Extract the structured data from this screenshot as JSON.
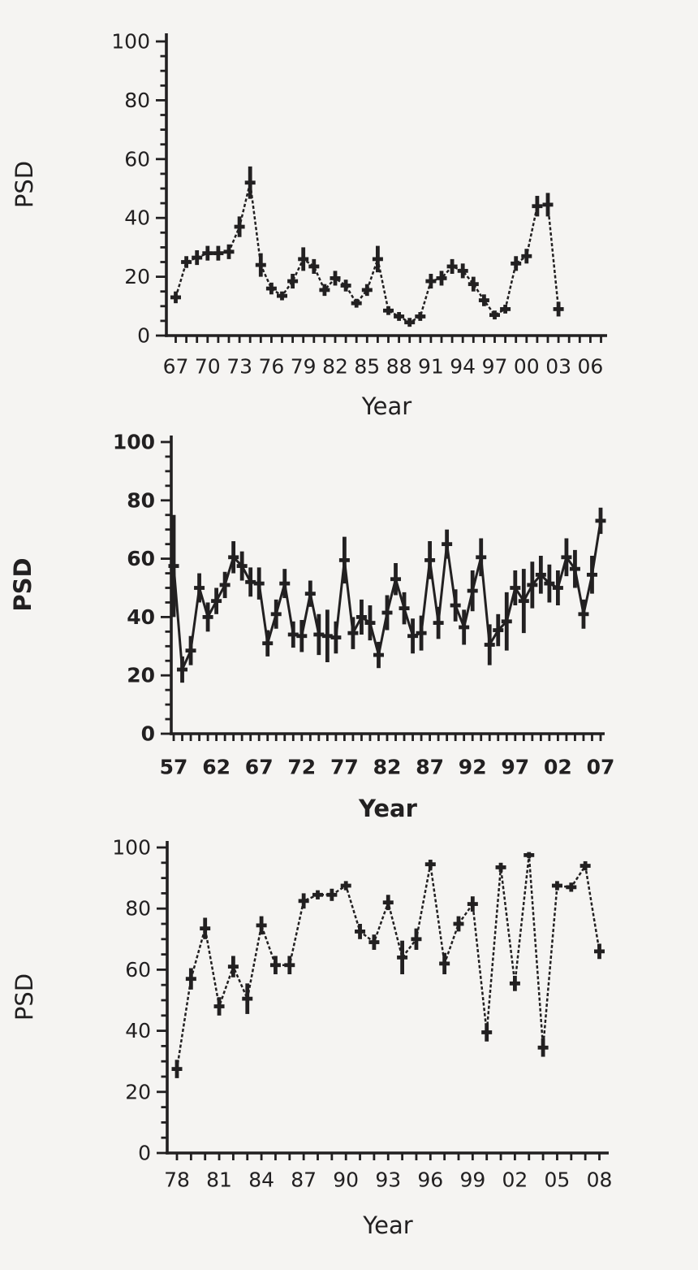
{
  "colors": {
    "background": "#f5f4f2",
    "ink": "#222021"
  },
  "chart_data": [
    {
      "id": "chart-top",
      "type": "line",
      "title": "",
      "ylabel": "PSD",
      "xlabel": "Year",
      "bold_axis_titles": false,
      "bold_tick_labels": false,
      "line_style": "dashed",
      "legend": "none",
      "grid": false,
      "ylim": [
        0,
        100
      ],
      "ytick_labels": [
        "0",
        "20",
        "40",
        "60",
        "80",
        "100"
      ],
      "ytick_minor_step": 5,
      "x_label_interval": 3,
      "x_tick_labels": [
        "67",
        "70",
        "73",
        "76",
        "79",
        "82",
        "85",
        "88",
        "91",
        "94",
        "97",
        "00",
        "03",
        "06"
      ],
      "x_axis_tick_years": 41,
      "series": [
        {
          "name": "PSD",
          "marker": "plus-dash",
          "years": [
            1967,
            1968,
            1969,
            1970,
            1971,
            1972,
            1973,
            1974,
            1975,
            1976,
            1977,
            1978,
            1979,
            1980,
            1981,
            1982,
            1983,
            1984,
            1985,
            1986,
            1987,
            1988,
            1989,
            1990,
            1991,
            1992,
            1993,
            1994,
            1995,
            1996,
            1997,
            1998,
            1999,
            2000,
            2001,
            2002,
            2003
          ],
          "values": [
            13,
            25,
            26.5,
            28,
            28,
            28.5,
            37,
            52,
            24,
            16,
            13.5,
            18.5,
            26,
            23.5,
            15.5,
            19.5,
            17,
            11,
            15.5,
            26,
            8.5,
            6.5,
            4.5,
            6.5,
            18.5,
            19.5,
            23.5,
            22,
            17.5,
            12,
            7,
            9,
            24.5,
            27,
            44,
            44.5,
            9
          ],
          "errors": [
            2,
            2,
            2.5,
            2.5,
            2.5,
            2.5,
            3.5,
            5.5,
            4,
            2,
            1.5,
            2.5,
            4,
            2.5,
            2,
            2.5,
            2,
            1.5,
            2,
            4.5,
            1.5,
            1.5,
            1.5,
            1.5,
            2.5,
            2.5,
            2.5,
            2.5,
            2.5,
            2,
            1.5,
            1.5,
            2.5,
            2.5,
            3.5,
            4,
            2.5
          ]
        }
      ]
    },
    {
      "id": "chart-middle",
      "type": "line",
      "title": "",
      "ylabel": "PSD",
      "xlabel": "Year",
      "bold_axis_titles": true,
      "bold_tick_labels": true,
      "line_style": "solid",
      "legend": "none",
      "grid": false,
      "ylim": [
        0,
        100
      ],
      "ytick_labels": [
        "0",
        "20",
        "40",
        "60",
        "80",
        "100"
      ],
      "ytick_minor_step": 5,
      "x_label_interval": 5,
      "x_tick_labels": [
        "57",
        "62",
        "67",
        "72",
        "77",
        "82",
        "87",
        "92",
        "97",
        "02",
        "07"
      ],
      "x_axis_tick_years": 51,
      "series": [
        {
          "name": "PSD",
          "marker": "plus-dash",
          "years": [
            1957,
            1958,
            1959,
            1960,
            1961,
            1962,
            1963,
            1964,
            1965,
            1966,
            1967,
            1968,
            1969,
            1970,
            1971,
            1972,
            1973,
            1974,
            1975,
            1976,
            1977,
            1978,
            1979,
            1980,
            1981,
            1982,
            1983,
            1984,
            1985,
            1986,
            1987,
            1988,
            1989,
            1990,
            1991,
            1992,
            1993,
            1994,
            1995,
            1996,
            1997,
            1998,
            1999,
            2000,
            2001,
            2002,
            2003,
            2004,
            2005,
            2006,
            2007
          ],
          "values": [
            57.5,
            22,
            28.5,
            50,
            40,
            45.5,
            51,
            60.5,
            57.5,
            52,
            51.5,
            31,
            41,
            51.5,
            34,
            33.5,
            48,
            34,
            33.5,
            33,
            59.5,
            34.5,
            40,
            38,
            27,
            41.5,
            53,
            43,
            33.5,
            34.5,
            59.5,
            38,
            65,
            44,
            36.5,
            49,
            60.5,
            30.5,
            35.5,
            38.5,
            50,
            45.5,
            51,
            54.5,
            51.5,
            50,
            60.5,
            56.5,
            41,
            54.5,
            73
          ],
          "errors": [
            17.5,
            4.5,
            5,
            5,
            5,
            4.5,
            4.5,
            5.5,
            5,
            5,
            5.5,
            4.5,
            5,
            5,
            4.5,
            5.5,
            4.5,
            7,
            9,
            5.5,
            8,
            5.5,
            6,
            6,
            4.5,
            6,
            5.5,
            5.5,
            6,
            6,
            6.5,
            5.5,
            5,
            5.5,
            6,
            7,
            6.5,
            7,
            5.5,
            10,
            6,
            11,
            8,
            6.5,
            6.5,
            6,
            6.5,
            6.5,
            5,
            6.5,
            4.5
          ]
        }
      ]
    },
    {
      "id": "chart-bottom",
      "type": "line",
      "title": "",
      "ylabel": "PSD",
      "xlabel": "Year",
      "bold_axis_titles": false,
      "bold_tick_labels": false,
      "line_style": "dashed",
      "legend": "none",
      "grid": false,
      "ylim": [
        0,
        100
      ],
      "ytick_labels": [
        "0",
        "20",
        "40",
        "60",
        "80",
        "100"
      ],
      "ytick_minor_step": 5,
      "x_label_interval": 3,
      "x_tick_labels": [
        "78",
        "81",
        "84",
        "87",
        "90",
        "93",
        "96",
        "99",
        "02",
        "05",
        "08"
      ],
      "x_axis_tick_years": 31,
      "series": [
        {
          "name": "PSD",
          "marker": "plus-dash",
          "years": [
            1978,
            1979,
            1980,
            1981,
            1982,
            1983,
            1984,
            1985,
            1986,
            1987,
            1988,
            1989,
            1990,
            1991,
            1992,
            1993,
            1994,
            1995,
            1996,
            1997,
            1998,
            1999,
            2000,
            2001,
            2002,
            2003,
            2004,
            2005,
            2006,
            2007,
            2008
          ],
          "values": [
            27.5,
            57,
            73.5,
            48,
            61,
            50.5,
            74.5,
            61.5,
            61.5,
            82.5,
            84.5,
            84.5,
            87.5,
            72.5,
            69,
            82,
            64,
            70,
            94.5,
            62,
            75,
            81.5,
            39.5,
            93.5,
            55.5,
            97.5,
            34.5,
            87.5,
            87,
            94,
            66
          ],
          "errors": [
            3,
            3.5,
            3.5,
            3,
            3.5,
            5,
            3,
            3,
            3,
            2.5,
            1.5,
            2,
            1.5,
            2.5,
            2.5,
            2.5,
            5.5,
            3.5,
            1.5,
            3.5,
            2.5,
            2.5,
            3,
            1.5,
            2.5,
            1,
            3,
            1.5,
            1.5,
            1.5,
            2.5
          ]
        }
      ]
    }
  ]
}
